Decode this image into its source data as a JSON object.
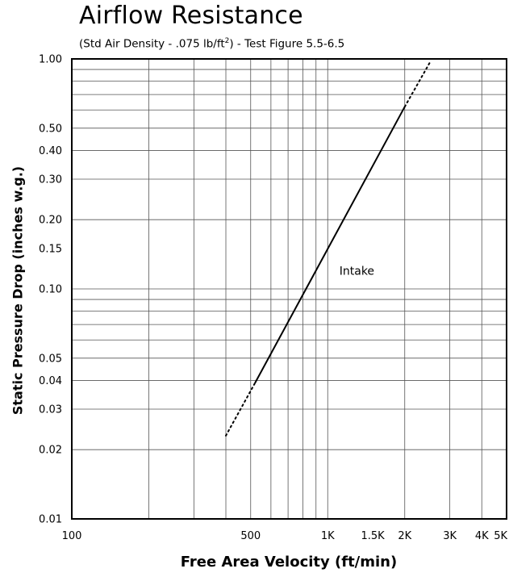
{
  "chart_data": {
    "type": "line",
    "title": "Airflow Resistance",
    "subtitle_main": "(Std Air Density - .075 lb/ft",
    "subtitle_sup": "2",
    "subtitle_tail": ") - Test Figure 5.5-6.5",
    "xlabel": "Free Area Velocity (ft/min)",
    "ylabel": "Static Pressure Drop (inches w.g.)",
    "x_scale": "log",
    "y_scale": "log",
    "xlim": [
      100,
      5000
    ],
    "ylim": [
      0.01,
      1.0
    ],
    "grid": true,
    "x_ticks": [
      {
        "value": 100,
        "label": "100"
      },
      {
        "value": 500,
        "label": "500"
      },
      {
        "value": 1000,
        "label": "1K"
      },
      {
        "value": 1500,
        "label": "1.5K"
      },
      {
        "value": 2000,
        "label": "2K"
      },
      {
        "value": 3000,
        "label": "3K"
      },
      {
        "value": 4000,
        "label": "4K"
      },
      {
        "value": 5000,
        "label": "5K"
      }
    ],
    "y_ticks": [
      {
        "value": 1.0,
        "label": "1.00"
      },
      {
        "value": 0.5,
        "label": "0.50"
      },
      {
        "value": 0.4,
        "label": "0.40"
      },
      {
        "value": 0.3,
        "label": "0.30"
      },
      {
        "value": 0.2,
        "label": "0.20"
      },
      {
        "value": 0.15,
        "label": "0.15"
      },
      {
        "value": 0.1,
        "label": "0.10"
      },
      {
        "value": 0.05,
        "label": "0.05"
      },
      {
        "value": 0.04,
        "label": "0.04"
      },
      {
        "value": 0.03,
        "label": "0.03"
      },
      {
        "value": 0.02,
        "label": "0.02"
      },
      {
        "value": 0.01,
        "label": "0.01"
      }
    ],
    "x_minor_grid": [
      200,
      300,
      400,
      500,
      600,
      700,
      800,
      900,
      1000,
      2000,
      3000,
      4000
    ],
    "y_minor_grid": [
      0.02,
      0.03,
      0.04,
      0.05,
      0.06,
      0.07,
      0.08,
      0.09,
      0.1,
      0.2,
      0.3,
      0.4,
      0.5,
      0.6,
      0.7,
      0.8,
      0.9
    ],
    "series": [
      {
        "name": "Intake",
        "segments": [
          {
            "style": "dotted",
            "x": [
              400,
              520
            ],
            "y": [
              0.023,
              0.039
            ]
          },
          {
            "style": "solid",
            "x": [
              520,
              2000
            ],
            "y": [
              0.039,
              0.62
            ]
          },
          {
            "style": "dotted",
            "x": [
              2000,
              2500
            ],
            "y": [
              0.62,
              0.96
            ]
          }
        ]
      }
    ],
    "annotations": [
      {
        "text": "Intake",
        "x": 1300,
        "y": 0.12
      }
    ]
  }
}
